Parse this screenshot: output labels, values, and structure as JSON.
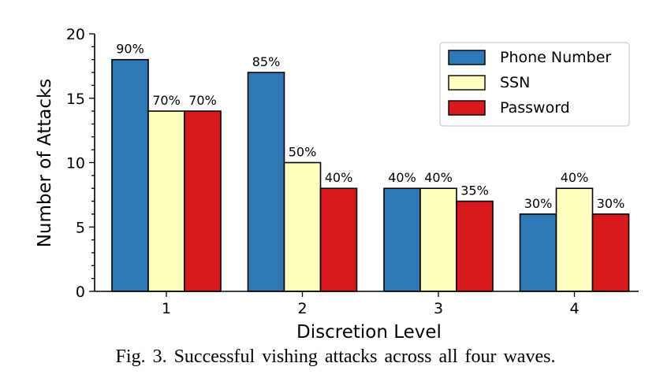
{
  "chart_data": {
    "type": "bar",
    "categories": [
      "1",
      "2",
      "3",
      "4"
    ],
    "series": [
      {
        "name": "Phone Number",
        "values": [
          18,
          17,
          8,
          6
        ],
        "labels": [
          "90%",
          "85%",
          "40%",
          "30%"
        ],
        "color": "#2d78b5"
      },
      {
        "name": "SSN",
        "values": [
          14,
          10,
          8,
          8
        ],
        "labels": [
          "70%",
          "50%",
          "40%",
          "40%"
        ],
        "color": "#ffffc0"
      },
      {
        "name": "Password",
        "values": [
          14,
          8,
          7,
          6
        ],
        "labels": [
          "70%",
          "40%",
          "35%",
          "30%"
        ],
        "color": "#d7191c"
      }
    ],
    "xlabel": "Discretion Level",
    "ylabel": "Number of Attacks",
    "ylim": [
      0,
      20
    ],
    "yticks": [
      "0",
      "5",
      "10",
      "15",
      "20"
    ],
    "legend_position": "top-right",
    "grid": false
  },
  "caption": "Fig. 3.  Successful vishing attacks across all four waves."
}
